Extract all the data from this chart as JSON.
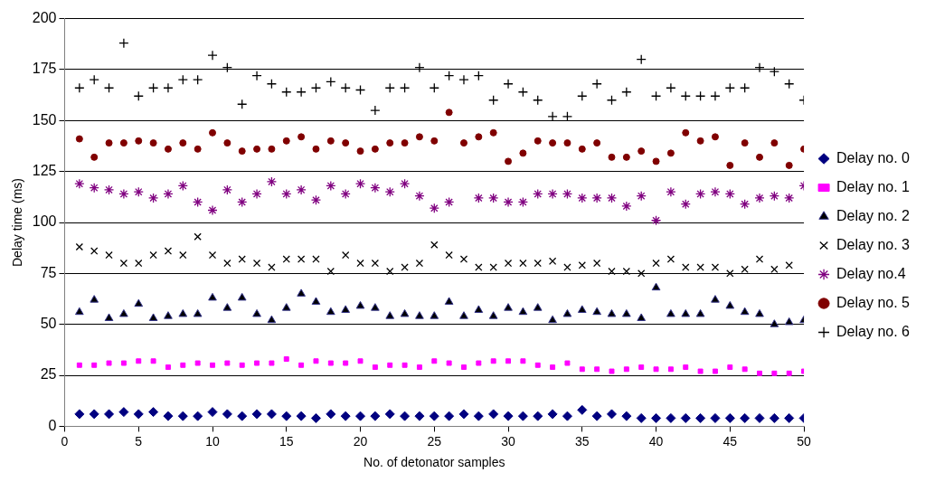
{
  "chart_data": {
    "type": "scatter",
    "xlabel": "No. of detonator samples",
    "ylabel": "Delay time (ms)",
    "x": [
      1,
      2,
      3,
      4,
      5,
      6,
      7,
      8,
      9,
      10,
      11,
      12,
      13,
      14,
      15,
      16,
      17,
      18,
      19,
      20,
      21,
      22,
      23,
      24,
      25,
      26,
      27,
      28,
      29,
      30,
      31,
      32,
      33,
      34,
      35,
      36,
      37,
      38,
      39,
      40,
      41,
      42,
      43,
      44,
      45,
      46,
      47,
      48,
      49,
      50
    ],
    "xlim": [
      0,
      50
    ],
    "xticks": [
      0,
      5,
      10,
      15,
      20,
      25,
      30,
      35,
      40,
      45,
      50
    ],
    "ylim": [
      0,
      200
    ],
    "yticks": [
      0,
      25,
      50,
      75,
      100,
      125,
      150,
      175,
      200
    ],
    "grid": "y",
    "legend": "right",
    "series": [
      {
        "name": "Delay no. 0",
        "color": "#000080",
        "marker": "diamond",
        "values": [
          6,
          6,
          6,
          7,
          6,
          7,
          5,
          5,
          5,
          7,
          6,
          5,
          6,
          6,
          5,
          5,
          4,
          6,
          5,
          5,
          5,
          6,
          5,
          5,
          5,
          5,
          6,
          5,
          6,
          5,
          5,
          5,
          6,
          5,
          8,
          5,
          6,
          5,
          4,
          4,
          4,
          4,
          4,
          4,
          4,
          4,
          4,
          4,
          4,
          4
        ]
      },
      {
        "name": "Delay no. 1",
        "color": "#ff00ff",
        "marker": "square",
        "values": [
          30,
          30,
          31,
          31,
          32,
          32,
          29,
          30,
          31,
          30,
          31,
          30,
          31,
          31,
          33,
          30,
          32,
          31,
          31,
          32,
          29,
          30,
          30,
          29,
          32,
          31,
          29,
          31,
          32,
          32,
          32,
          30,
          29,
          31,
          28,
          28,
          27,
          28,
          29,
          28,
          28,
          29,
          27,
          27,
          29,
          28,
          26,
          26,
          26,
          27
        ]
      },
      {
        "name": "Delay no. 2",
        "color": "#000000",
        "marker": "triangle",
        "values": [
          56,
          62,
          53,
          55,
          60,
          53,
          54,
          55,
          55,
          63,
          58,
          63,
          55,
          52,
          58,
          65,
          61,
          56,
          57,
          59,
          58,
          54,
          55,
          54,
          54,
          61,
          54,
          57,
          54,
          58,
          56,
          58,
          52,
          55,
          57,
          56,
          55,
          55,
          53,
          68,
          55,
          55,
          55,
          62,
          59,
          56,
          55,
          50,
          51,
          52
        ]
      },
      {
        "name": "Delay no. 3",
        "color": "#000000",
        "marker": "x",
        "values": [
          88,
          86,
          84,
          80,
          80,
          84,
          86,
          84,
          93,
          84,
          80,
          82,
          80,
          78,
          82,
          82,
          82,
          76,
          84,
          80,
          80,
          76,
          78,
          80,
          89,
          84,
          82,
          78,
          78,
          80,
          80,
          80,
          81,
          78,
          79,
          80,
          76,
          76,
          75,
          80,
          82,
          78,
          78,
          78,
          75,
          77,
          82,
          77,
          79,
          null
        ]
      },
      {
        "name": "Delay no.4",
        "color": "#800080",
        "marker": "cross",
        "values": [
          119,
          117,
          116,
          114,
          115,
          112,
          114,
          118,
          110,
          106,
          116,
          110,
          114,
          120,
          114,
          116,
          111,
          118,
          114,
          119,
          117,
          115,
          119,
          113,
          107,
          110,
          null,
          112,
          112,
          110,
          110,
          114,
          114,
          114,
          112,
          112,
          112,
          108,
          113,
          101,
          115,
          109,
          114,
          115,
          114,
          109,
          112,
          113,
          112,
          118
        ]
      },
      {
        "name": "Delay no. 5",
        "color": "#800000",
        "marker": "circle",
        "values": [
          141,
          132,
          139,
          139,
          140,
          139,
          136,
          139,
          136,
          144,
          139,
          135,
          136,
          136,
          140,
          142,
          136,
          140,
          139,
          135,
          136,
          139,
          139,
          142,
          140,
          154,
          139,
          142,
          144,
          130,
          134,
          140,
          139,
          139,
          136,
          139,
          132,
          132,
          135,
          130,
          134,
          144,
          140,
          142,
          128,
          139,
          132,
          139,
          128,
          136
        ]
      },
      {
        "name": "Delay no. 6",
        "color": "#000000",
        "marker": "plus",
        "values": [
          166,
          170,
          166,
          188,
          162,
          166,
          166,
          170,
          170,
          182,
          176,
          158,
          172,
          168,
          164,
          164,
          166,
          169,
          166,
          165,
          155,
          166,
          166,
          176,
          166,
          172,
          170,
          172,
          160,
          168,
          164,
          160,
          152,
          152,
          162,
          168,
          160,
          164,
          180,
          162,
          166,
          162,
          162,
          162,
          166,
          166,
          176,
          174,
          168,
          160
        ]
      }
    ]
  }
}
